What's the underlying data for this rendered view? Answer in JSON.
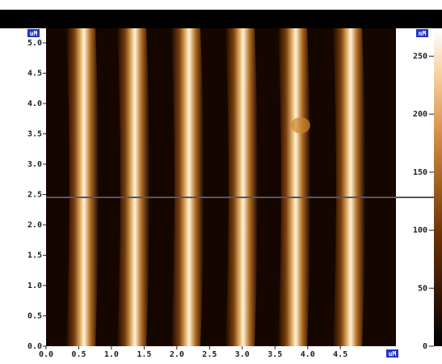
{
  "chart_data": {
    "type": "afm-image",
    "x_unit": "uM",
    "y_unit": "uM",
    "colorbar_unit": "nM",
    "xlim": [
      0,
      5.35
    ],
    "xticks": [
      {
        "value": 0,
        "label": "0.0"
      },
      0.5,
      {
        "value": 1,
        "label": "1.0"
      },
      1.5,
      {
        "value": 2,
        "label": "2.0"
      },
      2.5,
      {
        "value": 3,
        "label": "3.0"
      },
      3.5,
      {
        "value": 4,
        "label": "4.0"
      },
      4.5
    ],
    "ylim": [
      0,
      5.24
    ],
    "yticks": [
      {
        "value": 0,
        "label": "0.0"
      },
      0.5,
      {
        "value": 1,
        "label": "1.0"
      },
      1.5,
      {
        "value": 2,
        "label": "2.0"
      },
      2.5,
      {
        "value": 3,
        "label": "3.0"
      },
      3.5,
      {
        "value": 4,
        "label": "4.0"
      },
      4.5,
      {
        "value": 5,
        "label": "5.0"
      }
    ],
    "colorbar_lim": [
      0,
      274
    ],
    "colorbar_ticks": [
      0,
      50,
      100,
      150,
      200,
      250
    ]
  }
}
